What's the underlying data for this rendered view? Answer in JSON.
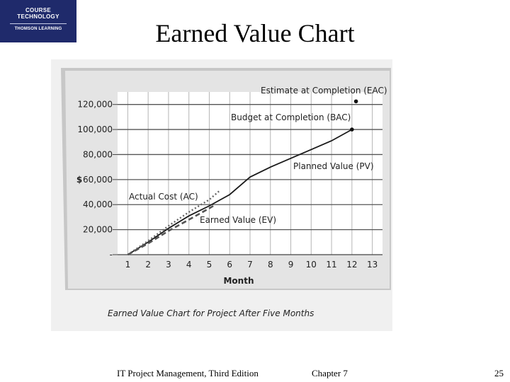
{
  "logo": {
    "line1": "COURSE",
    "line2": "TECHNOLOGY",
    "line3": "THOMSON LEARNING"
  },
  "title": "Earned Value Chart",
  "footer": {
    "book": "IT Project Management, Third Edition",
    "chapter": "Chapter 7",
    "page": "25"
  },
  "chart_data": {
    "type": "line",
    "caption": "Earned Value Chart for Project After Five Months",
    "xlabel": "Month",
    "ylabel": "$",
    "x_ticks": [
      "1",
      "2",
      "3",
      "4",
      "5",
      "6",
      "7",
      "8",
      "9",
      "10",
      "11",
      "12",
      "13"
    ],
    "xlim": [
      0.5,
      13.5
    ],
    "y_ticks": [
      "-",
      "20,000",
      "40,000",
      "60,000",
      "80,000",
      "100,000",
      "120,000"
    ],
    "y_tick_values": [
      0,
      20000,
      40000,
      60000,
      80000,
      100000,
      120000
    ],
    "ylim": [
      0,
      130000
    ],
    "grid": true,
    "series": [
      {
        "name": "Planned Value (PV)",
        "style": "solid",
        "color": "#1a1a1a",
        "x": [
          1,
          2,
          3,
          4,
          5,
          6,
          7,
          8,
          9,
          10,
          11,
          12
        ],
        "y": [
          0,
          10000,
          21000,
          31000,
          39000,
          48000,
          62000,
          70000,
          77000,
          84000,
          91000,
          100000
        ]
      },
      {
        "name": "Actual Cost (AC)",
        "style": "dotted",
        "color": "#666666",
        "x": [
          1,
          2,
          3,
          4,
          5,
          5.5
        ],
        "y": [
          0,
          11000,
          23000,
          34000,
          44000,
          51000
        ]
      },
      {
        "name": "Earned Value (EV)",
        "style": "dashed",
        "color": "#555555",
        "x": [
          1,
          2,
          3,
          4,
          5,
          5.3
        ],
        "y": [
          0,
          9000,
          19000,
          28000,
          37000,
          40000
        ]
      }
    ],
    "annotations": [
      {
        "label": "Estimate at Completion (EAC)",
        "x": 12.2,
        "y": 122500,
        "marker": true
      },
      {
        "label": "Budget at Completion (BAC)",
        "x": 12,
        "y": 100000,
        "marker": true
      }
    ]
  }
}
